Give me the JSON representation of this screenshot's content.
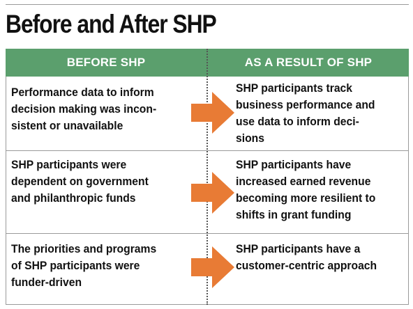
{
  "title": "Before and After SHP",
  "headers": {
    "before": "BEFORE SHP",
    "after": "AS A RESULT OF SHP"
  },
  "arrow_icon": "right-arrow-icon",
  "accent_color": "#5b9f6d",
  "arrow_color": "#e87b35",
  "rows": [
    {
      "before": [
        "Performance data to inform",
        "decision making was incon-",
        "sistent or unavailable"
      ],
      "after": [
        "SHP participants track",
        "business performance and",
        "use data to inform deci-",
        "sions"
      ]
    },
    {
      "before": [
        "SHP participants were",
        "dependent on government",
        "and philanthropic funds"
      ],
      "after": [
        "SHP participants have",
        "increased earned revenue",
        "becoming more resilient to",
        "shifts in grant funding"
      ]
    },
    {
      "before": [
        "The priorities and programs",
        "of SHP participants were",
        "funder-driven"
      ],
      "after": [
        "SHP participants have a",
        "customer-centric approach"
      ]
    }
  ]
}
